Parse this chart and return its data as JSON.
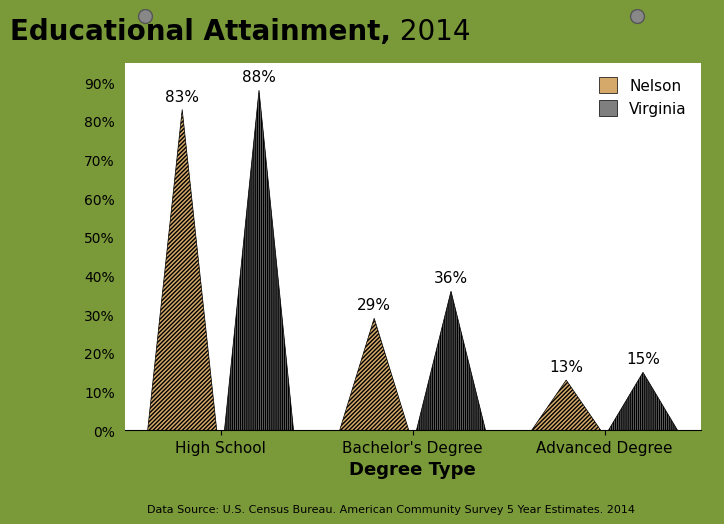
{
  "title": "Educational Attainment, 2014",
  "title_bold_part": "Educational Attainment,",
  "title_regular_part": " 2014",
  "categories": [
    "High School",
    "Bachelor's Degree",
    "Advanced Degree"
  ],
  "nelson_values": [
    83,
    29,
    13
  ],
  "virginia_values": [
    88,
    36,
    15
  ],
  "nelson_color": "#D4A96A",
  "virginia_color": "#7F7F7F",
  "nelson_label": "Nelson",
  "virginia_label": "Virginia",
  "xlabel": "Degree Type",
  "ylabel": "",
  "yticks": [
    0,
    10,
    20,
    30,
    40,
    50,
    60,
    70,
    80,
    90
  ],
  "ylim": [
    0,
    95
  ],
  "bg_color": "#ffffff",
  "outer_bg": "#7A9A3A",
  "data_source": "Data Source: U.S. Census Bureau. American Community Survey 5 Year Estimates. 2014",
  "hatch_nelson": "/",
  "hatch_virginia": "|"
}
